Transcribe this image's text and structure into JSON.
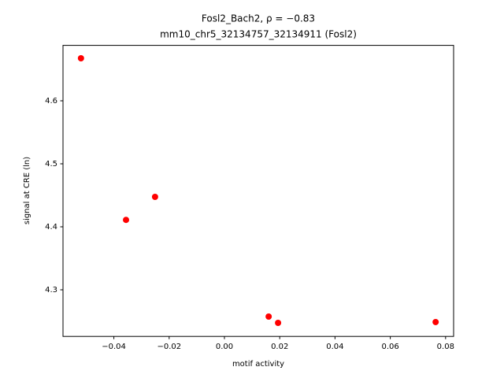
{
  "chart_data": {
    "type": "scatter",
    "title": "Fosl2_Bach2, ρ = −0.83",
    "subtitle": "mm10_chr5_32134757_32134911 (Fosl2)",
    "x_label": "motif activity",
    "y_label": "signal at CRE (ln)",
    "color": "#ff0000",
    "x": [
      -0.0519,
      -0.0356,
      -0.0251,
      0.016,
      0.0194,
      0.0764
    ],
    "values": [
      4.6675,
      4.411,
      4.4475,
      4.2575,
      4.2475,
      4.2488
    ],
    "xlim": [
      -0.0584,
      0.0829
    ],
    "ylim": [
      4.226,
      4.688
    ],
    "xticks": [
      {
        "value": -0.04,
        "label": "−0.04"
      },
      {
        "value": -0.02,
        "label": "−0.02"
      },
      {
        "value": 0,
        "label": "0.00"
      },
      {
        "value": 0.02,
        "label": "0.02"
      },
      {
        "value": 0.04,
        "label": "0.04"
      },
      {
        "value": 0.06,
        "label": "0.06"
      },
      {
        "value": 0.08,
        "label": "0.08"
      }
    ],
    "yticks": [
      4.3,
      4.4,
      4.5,
      4.6
    ]
  }
}
